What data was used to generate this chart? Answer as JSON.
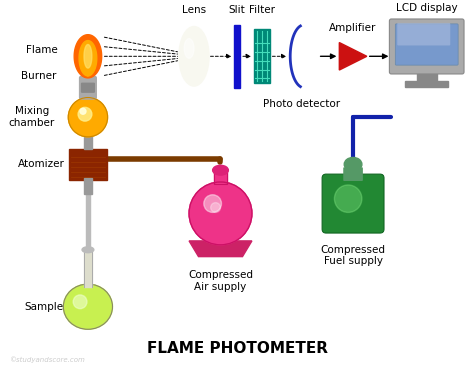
{
  "title": "FLAME PHOTOMETER",
  "subtitle": "©studyandscore.com",
  "bg_color": "#ffffff",
  "labels": {
    "flame": "Flame",
    "burner": "Burner",
    "mixing_chamber": "Mixing\nchamber",
    "atomizer": "Atomizer",
    "sample": "Sample",
    "lens": "Lens",
    "slit": "Slit",
    "filter": "Filter",
    "photo_detector": "Photo detector",
    "amplifier": "Amplifier",
    "lcd": "LCD display",
    "air": "Compressed\nAir supply",
    "fuel": "Compressed\nFuel supply"
  },
  "colors": {
    "flame_orange": "#FF6600",
    "flame_yellow": "#FFAA00",
    "flame_tip": "#FFE066",
    "burner_gray": "#999999",
    "mixing_orange": "#FFAA00",
    "mixing_yellow": "#FFEE88",
    "atomizer_brown": "#8B2500",
    "sample_green": "#C8F050",
    "sample_flask": "#DDDDCC",
    "lens_white": "#F8F8F0",
    "lens_edge": "#BBBBAA",
    "slit_blue": "#1111CC",
    "filter_teal": "#008877",
    "filter_line": "#44DDBB",
    "photo_blue": "#2233BB",
    "amplifier_red": "#CC1111",
    "lcd_blue": "#7799CC",
    "lcd_light": "#AABBDD",
    "lcd_frame": "#AAAAAA",
    "lcd_dark": "#888888",
    "pipe_brown": "#7B3B00",
    "pipe_blue": "#1122AA",
    "air_pink": "#EE3388",
    "air_light": "#FF88BB",
    "air_white": "#FFCCDD",
    "fuel_green": "#228833",
    "fuel_light": "#88EE88",
    "fuel_dark": "#115522",
    "fuel_cap": "#559966",
    "watermark": "#CCCCCC"
  },
  "layout": {
    "fig_w": 4.74,
    "fig_h": 3.67,
    "dpi": 100,
    "xlim": [
      0,
      474
    ],
    "ylim": [
      0,
      367
    ]
  }
}
